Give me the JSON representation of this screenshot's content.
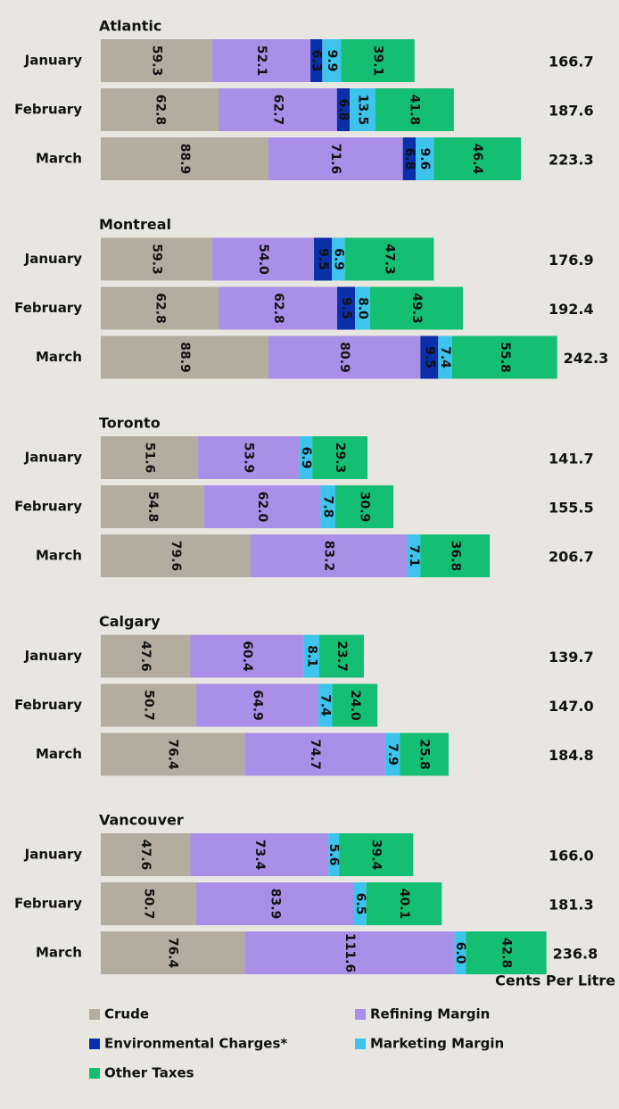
{
  "chart_data": {
    "type": "bar",
    "x_label": "Cents Per Litre",
    "series": [
      {
        "name": "Crude",
        "color": "#b3ada0"
      },
      {
        "name": "Refining Margin",
        "color": "#a98fe8"
      },
      {
        "name": "Environmental Charges*",
        "color": "#0a2fa8"
      },
      {
        "name": "Marketing Margin",
        "color": "#3cc4ec"
      },
      {
        "name": "Other Taxes",
        "color": "#14bf73"
      }
    ],
    "groups": [
      {
        "name": "Atlantic",
        "categories": [
          "January",
          "February",
          "March"
        ],
        "values": [
          [
            59.3,
            52.1,
            6.3,
            9.9,
            39.1
          ],
          [
            62.8,
            62.7,
            6.8,
            13.5,
            41.8
          ],
          [
            88.9,
            71.6,
            6.8,
            9.6,
            46.4
          ]
        ],
        "value_labels": [
          [
            "59.3",
            "52.1",
            "6.3",
            "9.9",
            "39.1"
          ],
          [
            "62.8",
            "62.7",
            "6.8",
            "13.5",
            "41.8"
          ],
          [
            "88.9",
            "71.6",
            "6.8",
            "9.6",
            "46.4"
          ]
        ],
        "totals": [
          "166.7",
          "187.6",
          "223.3"
        ]
      },
      {
        "name": "Montreal",
        "categories": [
          "January",
          "February",
          "March"
        ],
        "values": [
          [
            59.3,
            54.0,
            9.5,
            6.9,
            47.3
          ],
          [
            62.8,
            62.8,
            9.5,
            8.0,
            49.3
          ],
          [
            88.9,
            80.9,
            9.5,
            7.4,
            55.8
          ]
        ],
        "value_labels": [
          [
            "59.3",
            "54.0",
            "9.5",
            "6.9",
            "47.3"
          ],
          [
            "62.8",
            "62.8",
            "9.5",
            "8.0",
            "49.3"
          ],
          [
            "88.9",
            "80.9",
            "9.5",
            "7.4",
            "55.8"
          ]
        ],
        "totals": [
          "176.9",
          "192.4",
          "242.3"
        ]
      },
      {
        "name": "Toronto",
        "categories": [
          "January",
          "February",
          "March"
        ],
        "values": [
          [
            51.6,
            53.9,
            null,
            6.9,
            29.3
          ],
          [
            54.8,
            62.0,
            null,
            7.8,
            30.9
          ],
          [
            79.6,
            83.2,
            null,
            7.1,
            36.8
          ]
        ],
        "value_labels": [
          [
            "51.6",
            "53.9",
            null,
            "6.9",
            "29.3"
          ],
          [
            "54.8",
            "62.0",
            null,
            "7.8",
            "30.9"
          ],
          [
            "79.6",
            "83.2",
            null,
            "7.1",
            "36.8"
          ]
        ],
        "totals": [
          "141.7",
          "155.5",
          "206.7"
        ]
      },
      {
        "name": "Calgary",
        "categories": [
          "January",
          "February",
          "March"
        ],
        "values": [
          [
            47.6,
            60.4,
            null,
            8.1,
            23.7
          ],
          [
            50.7,
            64.9,
            null,
            7.4,
            24.0
          ],
          [
            76.4,
            74.7,
            null,
            7.9,
            25.8
          ]
        ],
        "value_labels": [
          [
            "47.6",
            "60.4",
            null,
            "8.1",
            "23.7"
          ],
          [
            "50.7",
            "64.9",
            null,
            "7.4",
            "24.0"
          ],
          [
            "76.4",
            "74.7",
            null,
            "7.9",
            "25.8"
          ]
        ],
        "totals": [
          "139.7",
          "147.0",
          "184.8"
        ]
      },
      {
        "name": "Vancouver",
        "categories": [
          "January",
          "February",
          "March"
        ],
        "values": [
          [
            47.6,
            73.4,
            null,
            5.6,
            39.4
          ],
          [
            50.7,
            83.9,
            null,
            6.5,
            40.1
          ],
          [
            76.4,
            111.6,
            null,
            6.0,
            42.8
          ]
        ],
        "value_labels": [
          [
            "47.6",
            "73.4",
            null,
            "5.6",
            "39.4"
          ],
          [
            "50.7",
            "83.9",
            null,
            "6.5",
            "40.1"
          ],
          [
            "76.4",
            "111.6",
            null,
            "6.0",
            "42.8"
          ]
        ],
        "totals": [
          "166.0",
          "181.3",
          "236.8"
        ]
      }
    ]
  }
}
